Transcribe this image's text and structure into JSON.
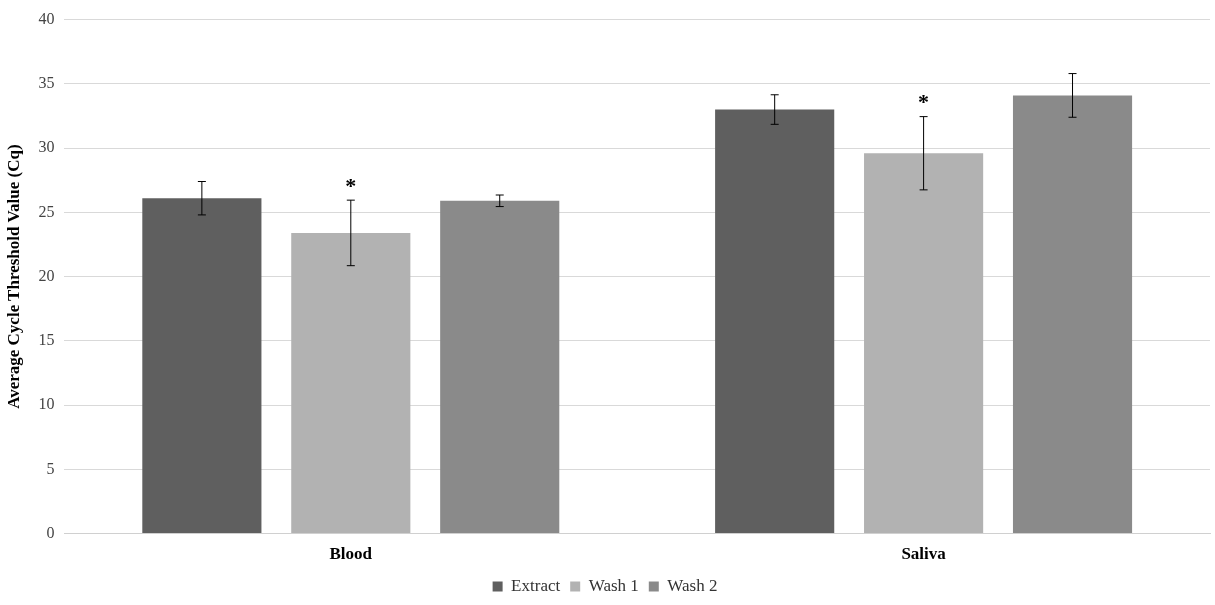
{
  "chart_data": {
    "type": "bar",
    "ylabel": "Average Cycle Threshold Value (Cq)",
    "categories": [
      "Blood",
      "Saliva"
    ],
    "series": [
      {
        "name": "Extract",
        "color": "#5f5f5f",
        "values": [
          26.1,
          33.0
        ],
        "errors": [
          1.3,
          1.15
        ]
      },
      {
        "name": "Wash 1",
        "color": "#b2b2b2",
        "values": [
          23.4,
          29.6
        ],
        "errors": [
          2.55,
          2.85
        ]
      },
      {
        "name": "Wash 2",
        "color": "#8a8a8a",
        "values": [
          25.9,
          34.1
        ],
        "errors": [
          0.45,
          1.7
        ]
      }
    ],
    "ylim": [
      0,
      40
    ],
    "yticks": [
      0,
      5,
      10,
      15,
      20,
      25,
      30,
      35,
      40
    ],
    "grid": "y",
    "legend": "bottom",
    "annotations": [
      "*",
      "*"
    ]
  }
}
